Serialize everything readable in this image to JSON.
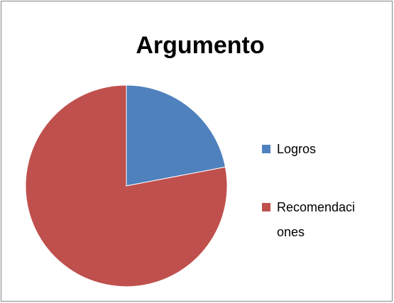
{
  "chart_data": {
    "type": "pie",
    "title": "Argumento",
    "categories": [
      "Logros",
      "Recomendaciones"
    ],
    "values": [
      22,
      78
    ],
    "colors": [
      "#4f81bd",
      "#c0504d"
    ],
    "legend": "right"
  }
}
